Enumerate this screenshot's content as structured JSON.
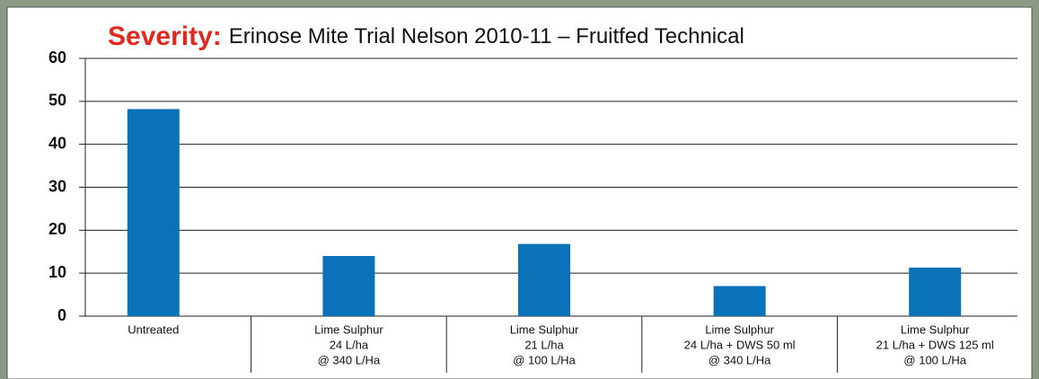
{
  "chart_data": {
    "type": "bar",
    "title_label": "Severity:",
    "title": "Erinose Mite Trial Nelson 2010-11 – Fruitfed Technical",
    "categories": [
      [
        "Untreated"
      ],
      [
        "Lime Sulphur",
        "24 L/ha",
        "@ 340 L/Ha"
      ],
      [
        "Lime Sulphur",
        "21 L/ha",
        "@ 100 L/Ha"
      ],
      [
        "Lime Sulphur",
        "24 L/ha + DWS 50 ml",
        "@ 340 L/Ha"
      ],
      [
        "Lime Sulphur",
        "21 L/ha + DWS 125 ml",
        "@ 100 L/Ha"
      ]
    ],
    "values": [
      48.2,
      14,
      16.8,
      7,
      11.3
    ],
    "color": "#0a72b8",
    "title_label_color": "#e0281e",
    "ylim": [
      0,
      60
    ],
    "yticks": [
      0,
      10,
      20,
      30,
      40,
      50,
      60
    ],
    "grid": true
  }
}
